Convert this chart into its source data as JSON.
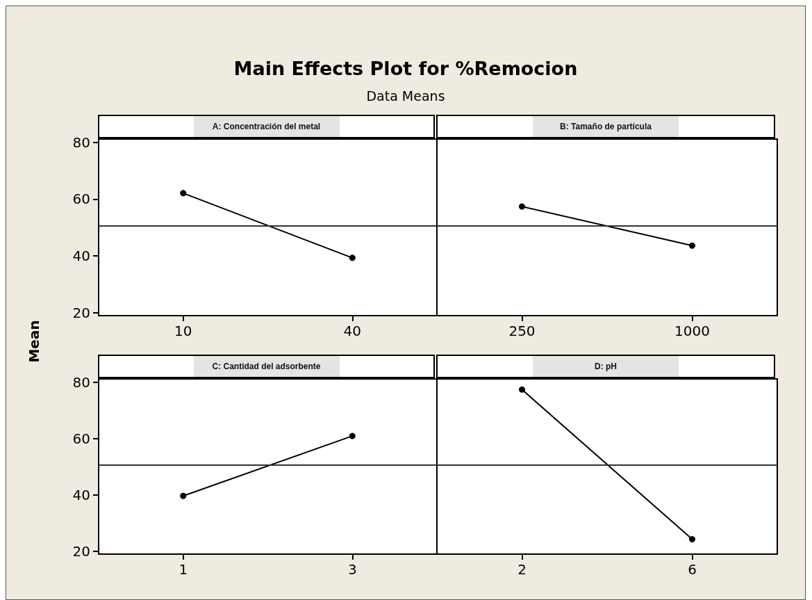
{
  "chart_data": [
    {
      "type": "line",
      "title": "Main Effects Plot for %Remocion",
      "subtitle": "Data Means",
      "ylabel": "Mean",
      "xlabel": "A: Concentración del metal",
      "categories": [
        "10",
        "40"
      ],
      "values": [
        62.1,
        39.3
      ],
      "color": "#000000",
      "marker": "circle",
      "ylim": [
        18.9,
        81.2
      ],
      "yticks": [
        20,
        40,
        60,
        80
      ],
      "ref_lines": [
        {
          "axis": "y",
          "value": 50.7,
          "color": "#333333"
        }
      ]
    },
    {
      "type": "line",
      "xlabel": "B: Tamaño de partícula",
      "categories": [
        "250",
        "1000"
      ],
      "values": [
        57.4,
        43.6
      ],
      "color": "#000000",
      "marker": "circle",
      "ylim": [
        18.9,
        81.2
      ],
      "yticks": [
        20,
        40,
        60,
        80
      ],
      "tick_labels": "x",
      "ref_lines": [
        {
          "axis": "y",
          "value": 50.7,
          "color": "#333333"
        }
      ]
    },
    {
      "type": "line",
      "xlabel": "C: Cantidad del adsorbente",
      "categories": [
        "1",
        "3"
      ],
      "values": [
        39.6,
        60.9
      ],
      "color": "#000000",
      "marker": "circle",
      "ylim": [
        18.9,
        81.2
      ],
      "yticks": [
        20,
        40,
        60,
        80
      ],
      "ref_lines": [
        {
          "axis": "y",
          "value": 50.7,
          "color": "#333333"
        }
      ]
    },
    {
      "type": "line",
      "xlabel": "D: pH",
      "categories": [
        "2",
        "6"
      ],
      "values": [
        77.4,
        24.2
      ],
      "color": "#000000",
      "marker": "circle",
      "ylim": [
        18.9,
        81.2
      ],
      "yticks": [
        20,
        40,
        60,
        80
      ],
      "tick_labels": "x",
      "ref_lines": [
        {
          "axis": "y",
          "value": 50.7,
          "color": "#333333"
        }
      ]
    }
  ]
}
